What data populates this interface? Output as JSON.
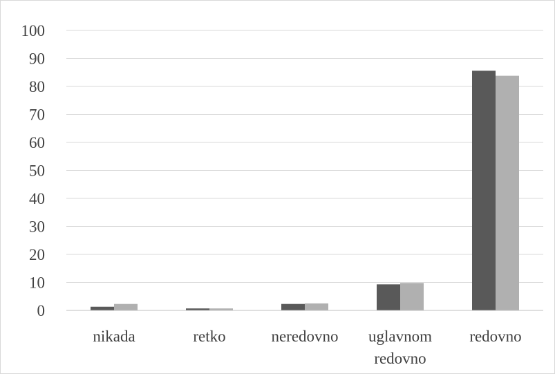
{
  "chart_data": {
    "type": "bar",
    "categories": [
      "nikada",
      "retko",
      "neredovno",
      "uglavnom redovno",
      "redovno"
    ],
    "category_lines": [
      [
        "nikada"
      ],
      [
        "retko"
      ],
      [
        "neredovno"
      ],
      [
        "uglavnom",
        "redovno"
      ],
      [
        "redovno"
      ]
    ],
    "series": [
      {
        "values": [
          1.3,
          0.7,
          2.3,
          9.3,
          85.6
        ],
        "color": "#595959"
      },
      {
        "values": [
          2.3,
          0.7,
          2.5,
          9.8,
          83.8
        ],
        "color": "#b0b0b0"
      }
    ],
    "yticks": [
      "0",
      "10",
      "20",
      "30",
      "40",
      "50",
      "60",
      "70",
      "80",
      "90",
      "100"
    ],
    "ylim": [
      0,
      100
    ],
    "grid": true,
    "legend": false,
    "gridline_color": "#d9d9d9",
    "axis_color": "#bfbfbf"
  }
}
